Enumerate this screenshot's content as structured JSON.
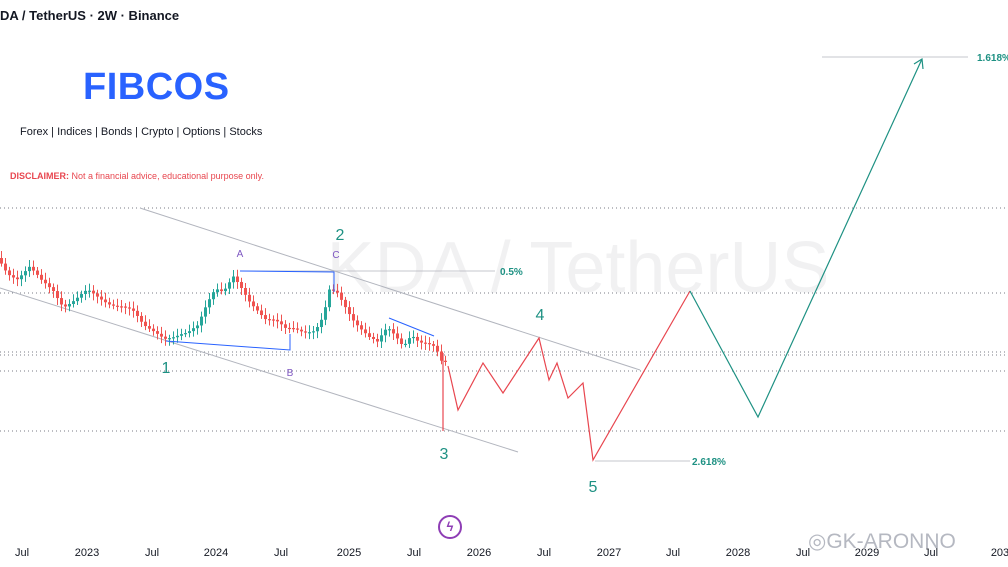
{
  "header": {
    "pair": "DA / TetherUS · 2W · Binance"
  },
  "brand": {
    "name": "FIBCOS",
    "markets": "Forex | Indices | Bonds | Crypto | Options | Stocks",
    "disclaimer_label": "DISCLAIMER:",
    "disclaimer_text": "Not a financial advice, educational purpose only.",
    "accent_color": "#2962ff",
    "disclaimer_color": "#e8464f"
  },
  "watermark": "KDA / TetherUS",
  "credit": "◎GK-ARONNO",
  "bolt_icon": "lightning-bolt-icon",
  "chart_data": {
    "type": "candlestick",
    "time_axis": {
      "ticks": [
        "Jul",
        "2023",
        "Jul",
        "2024",
        "Jul",
        "2025",
        "Jul",
        "2026",
        "Jul",
        "2027",
        "Jul",
        "2028",
        "Jul",
        "2029",
        "Jul",
        "203"
      ]
    },
    "colors": {
      "up": "#26a69a",
      "down": "#ef5350",
      "projection_down": "#e8464f",
      "projection_up": "#1e9183",
      "wave_labels": "#1e9183",
      "abc_labels": "#7e57c2",
      "trendlines": "#2962ff",
      "channel": "#b2b5be"
    },
    "wave_labels": [
      "1",
      "2",
      "3",
      "4",
      "5"
    ],
    "corrective_labels": [
      "A",
      "B",
      "C"
    ],
    "fib_levels": [
      {
        "label": "0.5%"
      },
      {
        "label": "2.618%"
      },
      {
        "label": "1.618%"
      }
    ],
    "grid": "dotted horizontal levels",
    "legend": "none"
  }
}
